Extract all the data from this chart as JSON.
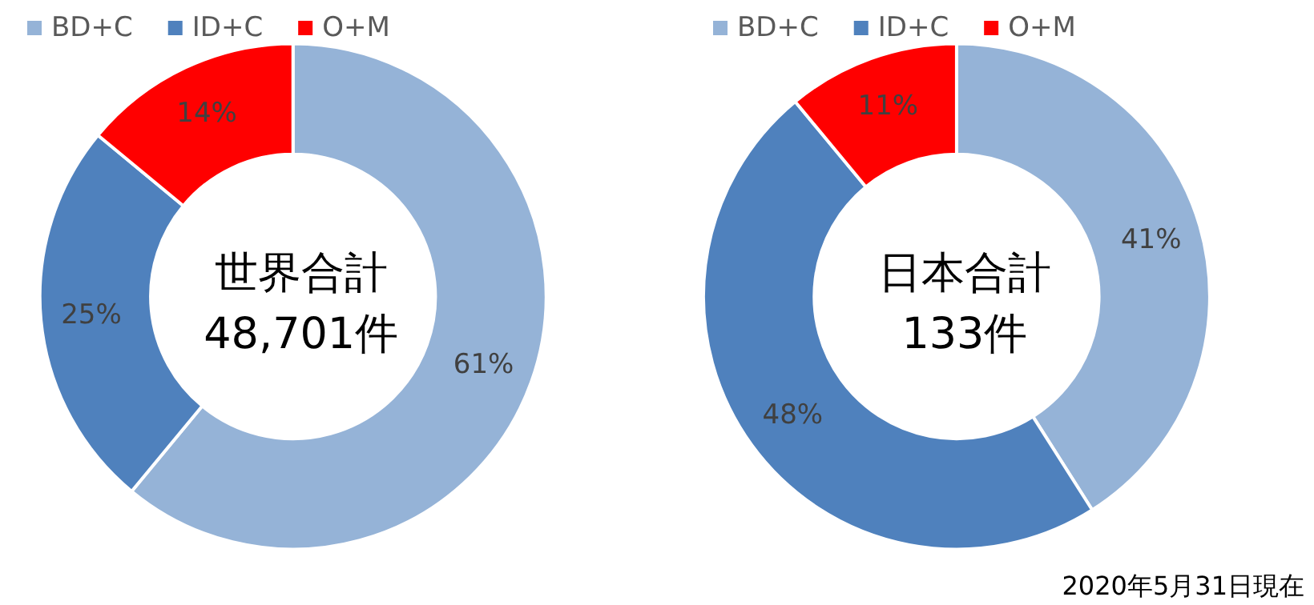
{
  "chart_data": [
    {
      "type": "donut",
      "title": "世界合計\n48,701件",
      "categories": [
        "BD+C",
        "ID+C",
        "O+M"
      ],
      "values": [
        61,
        25,
        14
      ],
      "value_labels": [
        "61%",
        "25%",
        "14%"
      ],
      "colors": [
        "#95b3d7",
        "#4f81bd",
        "#ff0000"
      ],
      "legend": "top"
    },
    {
      "type": "donut",
      "title": "日本合計\n133件",
      "categories": [
        "BD+C",
        "ID+C",
        "O+M"
      ],
      "values": [
        41,
        48,
        11
      ],
      "value_labels": [
        "41%",
        "48%",
        "11%"
      ],
      "colors": [
        "#95b3d7",
        "#4f81bd",
        "#ff0000"
      ],
      "legend": "top",
      "annotations": [
        "2020年5月31日現在"
      ]
    }
  ]
}
